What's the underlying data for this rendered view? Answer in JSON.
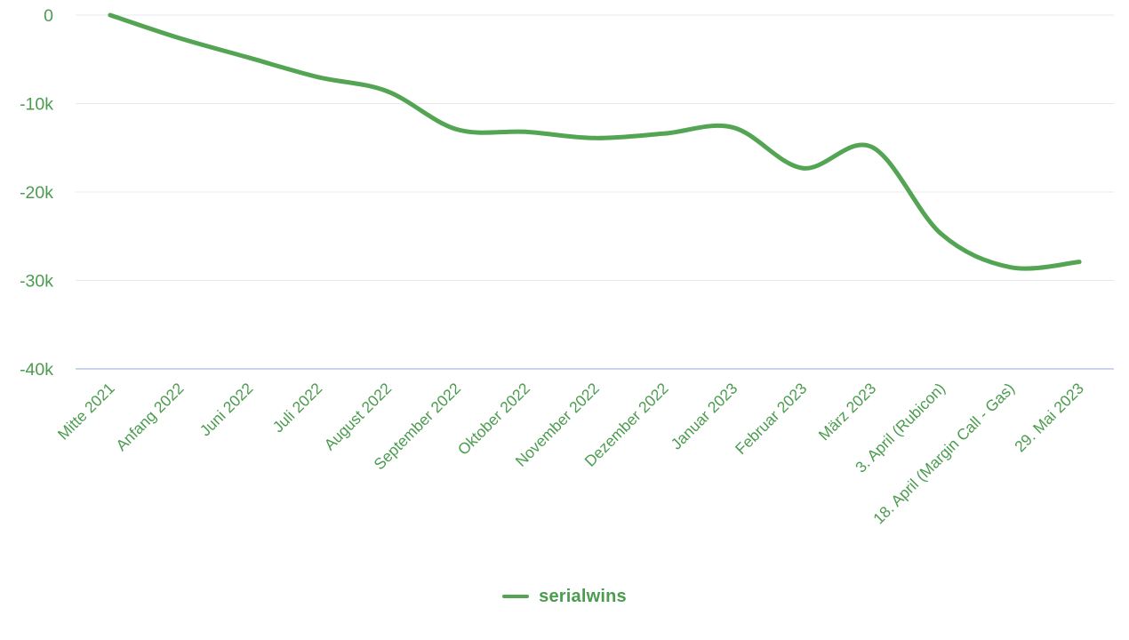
{
  "chart_data": {
    "type": "line",
    "title": "",
    "xlabel": "",
    "ylabel": "",
    "categories": [
      "Mitte 2021",
      "Anfang 2022",
      "Juni 2022",
      "Juli 2022",
      "August 2022",
      "September 2022",
      "Oktober 2022",
      "November 2022",
      "Dezember 2022",
      "Januar 2023",
      "Februar 2023",
      "März 2023",
      "3. April (Rubicon)",
      "18. April (Margin Call - Gas)",
      "29. Mai 2023"
    ],
    "series": [
      {
        "name": "serialwins",
        "values": [
          0,
          -2600,
          -4800,
          -7000,
          -8600,
          -12900,
          -13200,
          -13900,
          -13400,
          -12700,
          -17300,
          -14900,
          -24700,
          -28500,
          -27900
        ]
      }
    ],
    "ylim": [
      -40000,
      0
    ],
    "yticks": [
      0,
      -10000,
      -20000,
      -30000,
      -40000
    ],
    "ytick_labels": [
      "0",
      "-10k",
      "-20k",
      "-30k",
      "-40k"
    ],
    "grid": true,
    "legend_position": "bottom-center",
    "smooth": true
  },
  "colors": {
    "line": "#54a553",
    "axis_labels": "#4b9c4f",
    "legend_text": "#4b9c4f",
    "gridline": "#e9e9e9",
    "bottom_axis_line": "#ccd6eb",
    "background": "#ffffff"
  },
  "legend": {
    "series_label": "serialwins"
  }
}
